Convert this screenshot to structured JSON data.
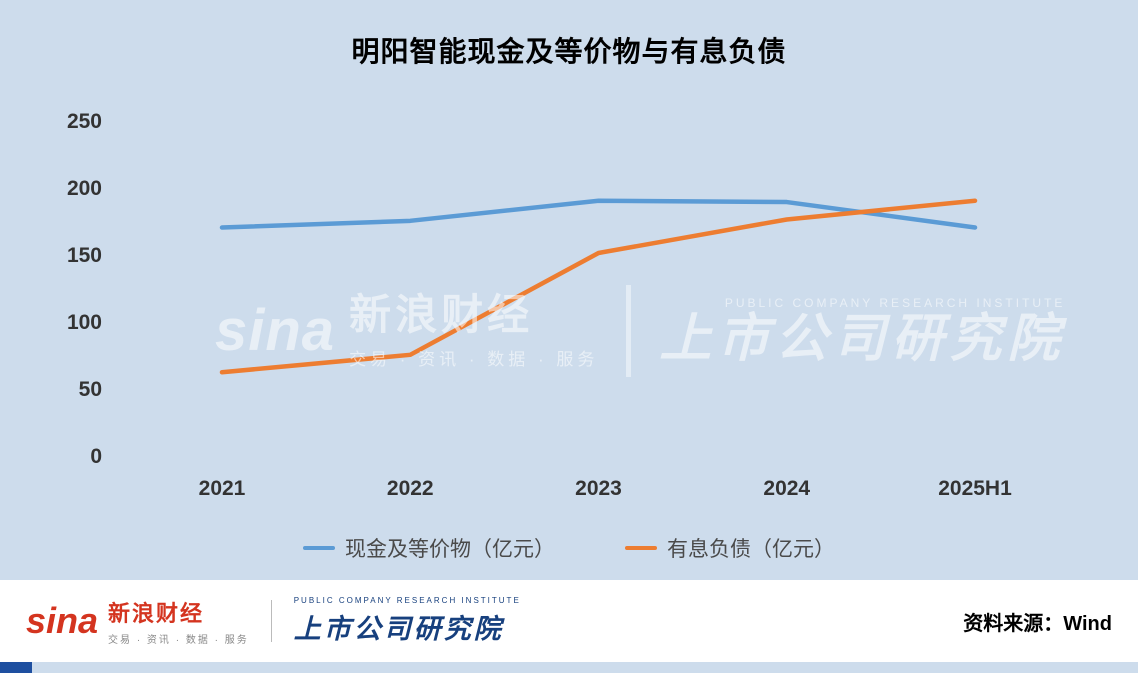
{
  "title": "明阳智能现金及等价物与有息负债",
  "chart_data": {
    "type": "line",
    "categories": [
      "2021",
      "2022",
      "2023",
      "2024",
      "2025H1"
    ],
    "series": [
      {
        "name": "现金及等价物（亿元）",
        "color": "#5b9bd5",
        "values": [
          172,
          177,
          192,
          191,
          172
        ]
      },
      {
        "name": "有息负债（亿元）",
        "color": "#ed7d31",
        "values": [
          64,
          77,
          153,
          178,
          192
        ]
      }
    ],
    "ylim": [
      0,
      250
    ],
    "yticks": [
      0,
      50,
      100,
      150,
      200,
      250
    ],
    "xlabel": "",
    "ylabel": "",
    "grid": false,
    "legend_position": "bottom"
  },
  "watermark": {
    "sina_word": "sina",
    "flame": "🔥",
    "sina_name": "新浪财经",
    "sina_tagline": "交易 · 资讯 · 数据 · 服务",
    "institute_caption": "PUBLIC COMPANY RESEARCH INSTITUTE",
    "institute_name": "上市公司研究院"
  },
  "footer": {
    "sina_word": "sina",
    "sina_name": "新浪财经",
    "sina_tagline": "交易 · 资讯 · 数据 · 服务",
    "institute_caption": "PUBLIC COMPANY RESEARCH INSTITUTE",
    "institute_name": "上市公司研究院",
    "source": "资料来源：Wind"
  },
  "colors": {
    "background": "#cddcec",
    "cash_line": "#5b9bd5",
    "debt_line": "#ed7d31",
    "footer_background": "#ffffff",
    "sina_red": "#d4341f",
    "institute_blue": "#17407e"
  }
}
